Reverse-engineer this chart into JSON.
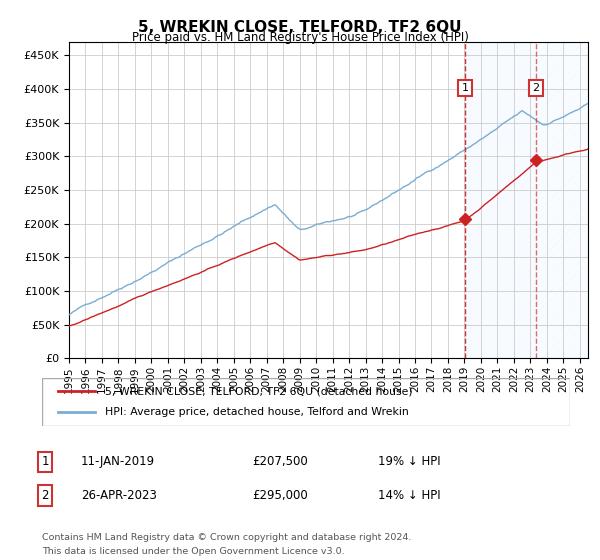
{
  "title": "5, WREKIN CLOSE, TELFORD, TF2 6QU",
  "subtitle": "Price paid vs. HM Land Registry's House Price Index (HPI)",
  "ylim": [
    0,
    470000
  ],
  "yticks": [
    0,
    50000,
    100000,
    150000,
    200000,
    250000,
    300000,
    350000,
    400000,
    450000
  ],
  "xlim_start": 1995.0,
  "xlim_end": 2026.5,
  "sale1_date": 2019.03,
  "sale1_price": 207500,
  "sale2_date": 2023.32,
  "sale2_price": 295000,
  "legend1_label": "5, WREKIN CLOSE, TELFORD, TF2 6QU (detached house)",
  "legend2_label": "HPI: Average price, detached house, Telford and Wrekin",
  "footer": "Contains HM Land Registry data © Crown copyright and database right 2024.\nThis data is licensed under the Open Government Licence v3.0.",
  "hpi_color": "#7aadd4",
  "price_color": "#cc2222",
  "shade_color": "#ddeeff",
  "grid_color": "#cccccc",
  "vline_color": "#cc3333"
}
